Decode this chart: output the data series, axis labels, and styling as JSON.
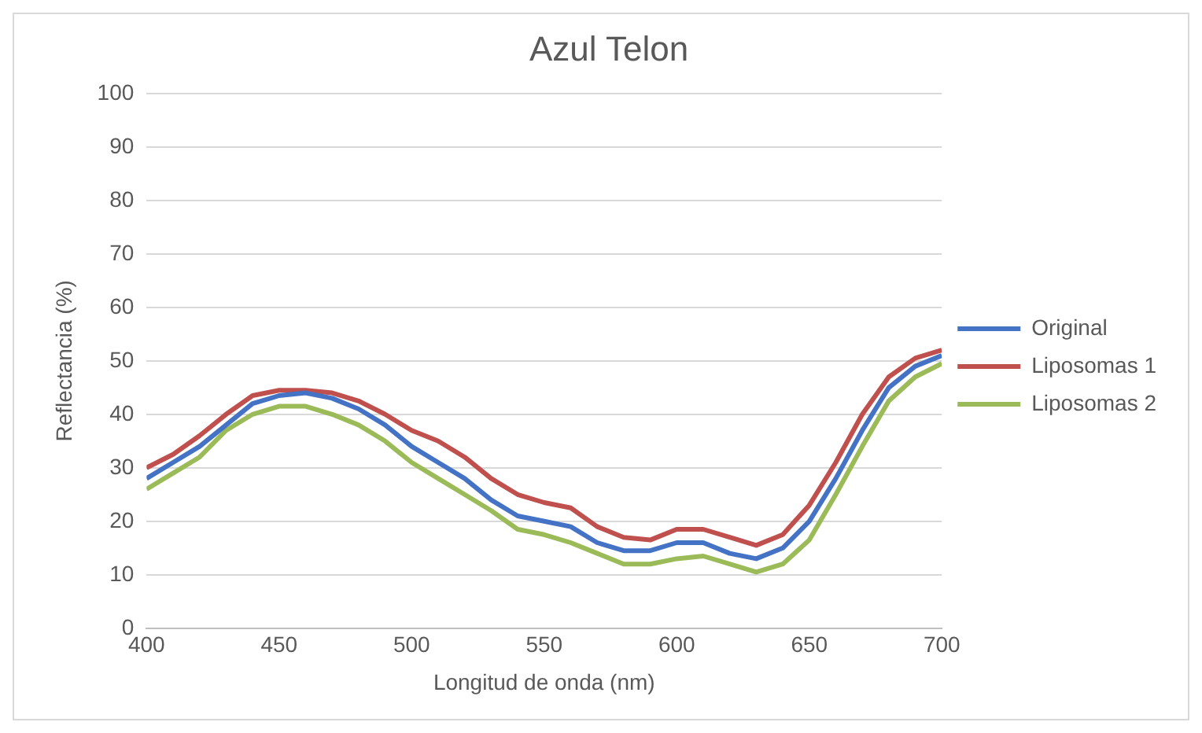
{
  "chart_data": {
    "type": "line",
    "title": "Azul Telon",
    "xlabel": "Longitud de onda (nm)",
    "ylabel": "Reflectancia (%)",
    "x": [
      400,
      410,
      420,
      430,
      440,
      450,
      460,
      470,
      480,
      490,
      500,
      510,
      520,
      530,
      540,
      550,
      560,
      570,
      580,
      590,
      600,
      610,
      620,
      630,
      640,
      650,
      660,
      670,
      680,
      690,
      700
    ],
    "series": [
      {
        "name": "Original",
        "color": "#4472c4",
        "values": [
          28,
          31,
          34,
          38,
          42,
          43.5,
          44,
          43,
          41,
          38,
          34,
          31,
          28,
          24,
          21,
          20,
          19,
          16,
          14.5,
          14.5,
          16,
          16,
          14,
          13,
          15,
          20,
          28,
          37,
          45,
          49,
          51
        ]
      },
      {
        "name": "Liposomas 1",
        "color": "#c0504d",
        "values": [
          30,
          32.5,
          36,
          40,
          43.5,
          44.5,
          44.5,
          44,
          42.5,
          40,
          37,
          35,
          32,
          28,
          25,
          23.5,
          22.5,
          19,
          17,
          16.5,
          18.5,
          18.5,
          17,
          15.5,
          17.5,
          23,
          31,
          40,
          47,
          50.5,
          52
        ]
      },
      {
        "name": "Liposomas 2",
        "color": "#9bbb59",
        "values": [
          26,
          29,
          32,
          37,
          40,
          41.5,
          41.5,
          40,
          38,
          35,
          31,
          28,
          25,
          22,
          18.5,
          17.5,
          16,
          14,
          12,
          12,
          13,
          13.5,
          12,
          10.5,
          12,
          16.5,
          25,
          34,
          42.5,
          47,
          49.5
        ]
      }
    ],
    "xlim": [
      400,
      700
    ],
    "xticks": [
      400,
      450,
      500,
      550,
      600,
      650,
      700
    ],
    "ylim": [
      0,
      100
    ],
    "yticks": [
      0,
      10,
      20,
      30,
      40,
      50,
      60,
      70,
      80,
      90,
      100
    ],
    "grid": "y",
    "legend": "right",
    "marker": "none",
    "line_style": "solid"
  }
}
